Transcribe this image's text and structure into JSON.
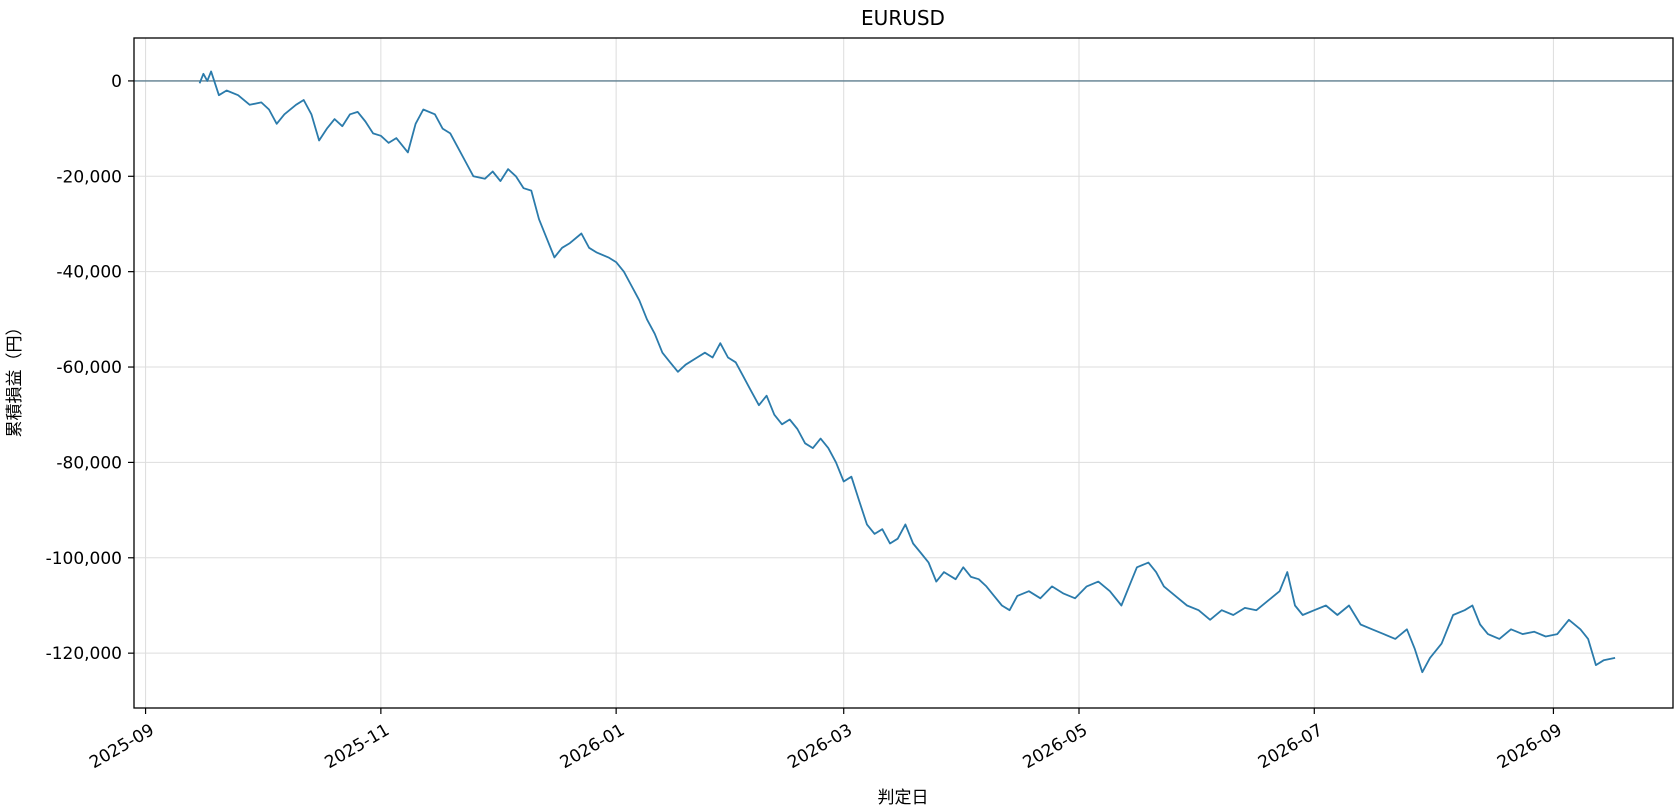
{
  "chart_data": {
    "type": "line",
    "title": "EURUSD",
    "xlabel": "判定日",
    "ylabel": "累積損益（円）",
    "x_ticks": [
      "2025-09",
      "2025-11",
      "2026-01",
      "2026-03",
      "2026-05",
      "2026-07",
      "2026-09"
    ],
    "y_ticks": [
      "0",
      "-20,000",
      "-40,000",
      "-60,000",
      "-80,000",
      "-100,000",
      "-120,000"
    ],
    "y_tick_values": [
      0,
      -20000,
      -40000,
      -60000,
      -80000,
      -100000,
      -120000
    ],
    "xlim": [
      "2025-08-29",
      "2026-10-02"
    ],
    "ylim": [
      -131500,
      9000
    ],
    "grid": true,
    "reference_line_y": 0,
    "colors": {
      "line": "#2b7bab",
      "zero_line": "#5f7f8f",
      "grid": "#dddddd",
      "axes": "#000000"
    },
    "series": [
      {
        "points": [
          [
            "2025-09-15",
            -500
          ],
          [
            "2025-09-16",
            1500
          ],
          [
            "2025-09-17",
            0
          ],
          [
            "2025-09-18",
            2000
          ],
          [
            "2025-09-19",
            -500
          ],
          [
            "2025-09-20",
            -3000
          ],
          [
            "2025-09-22",
            -2000
          ],
          [
            "2025-09-25",
            -3000
          ],
          [
            "2025-09-28",
            -5000
          ],
          [
            "2025-10-01",
            -4500
          ],
          [
            "2025-10-03",
            -6000
          ],
          [
            "2025-10-05",
            -9000
          ],
          [
            "2025-10-07",
            -7000
          ],
          [
            "2025-10-10",
            -5000
          ],
          [
            "2025-10-12",
            -4000
          ],
          [
            "2025-10-14",
            -7000
          ],
          [
            "2025-10-16",
            -12500
          ],
          [
            "2025-10-18",
            -10000
          ],
          [
            "2025-10-20",
            -8000
          ],
          [
            "2025-10-22",
            -9500
          ],
          [
            "2025-10-24",
            -7000
          ],
          [
            "2025-10-26",
            -6500
          ],
          [
            "2025-10-28",
            -8500
          ],
          [
            "2025-10-30",
            -11000
          ],
          [
            "2025-11-01",
            -11500
          ],
          [
            "2025-11-03",
            -13000
          ],
          [
            "2025-11-05",
            -12000
          ],
          [
            "2025-11-08",
            -15000
          ],
          [
            "2025-11-10",
            -9000
          ],
          [
            "2025-11-12",
            -6000
          ],
          [
            "2025-11-15",
            -7000
          ],
          [
            "2025-11-17",
            -10000
          ],
          [
            "2025-11-19",
            -11000
          ],
          [
            "2025-11-21",
            -14000
          ],
          [
            "2025-11-23",
            -17000
          ],
          [
            "2025-11-25",
            -20000
          ],
          [
            "2025-11-28",
            -20500
          ],
          [
            "2025-11-30",
            -19000
          ],
          [
            "2025-12-02",
            -21000
          ],
          [
            "2025-12-04",
            -18500
          ],
          [
            "2025-12-06",
            -20000
          ],
          [
            "2025-12-08",
            -22500
          ],
          [
            "2025-12-10",
            -23000
          ],
          [
            "2025-12-12",
            -29000
          ],
          [
            "2025-12-14",
            -33000
          ],
          [
            "2025-12-16",
            -37000
          ],
          [
            "2025-12-18",
            -35000
          ],
          [
            "2025-12-20",
            -34000
          ],
          [
            "2025-12-23",
            -32000
          ],
          [
            "2025-12-25",
            -35000
          ],
          [
            "2025-12-27",
            -36000
          ],
          [
            "2025-12-30",
            -37000
          ],
          [
            "2026-01-01",
            -38000
          ],
          [
            "2026-01-03",
            -40000
          ],
          [
            "2026-01-05",
            -43000
          ],
          [
            "2026-01-07",
            -46000
          ],
          [
            "2026-01-09",
            -50000
          ],
          [
            "2026-01-11",
            -53000
          ],
          [
            "2026-01-13",
            -57000
          ],
          [
            "2026-01-15",
            -59000
          ],
          [
            "2026-01-17",
            -61000
          ],
          [
            "2026-01-19",
            -59500
          ],
          [
            "2026-01-22",
            -58000
          ],
          [
            "2026-01-24",
            -57000
          ],
          [
            "2026-01-26",
            -58000
          ],
          [
            "2026-01-28",
            -55000
          ],
          [
            "2026-01-30",
            -58000
          ],
          [
            "2026-02-01",
            -59000
          ],
          [
            "2026-02-03",
            -62000
          ],
          [
            "2026-02-05",
            -65000
          ],
          [
            "2026-02-07",
            -68000
          ],
          [
            "2026-02-09",
            -66000
          ],
          [
            "2026-02-11",
            -70000
          ],
          [
            "2026-02-13",
            -72000
          ],
          [
            "2026-02-15",
            -71000
          ],
          [
            "2026-02-17",
            -73000
          ],
          [
            "2026-02-19",
            -76000
          ],
          [
            "2026-02-21",
            -77000
          ],
          [
            "2026-02-23",
            -75000
          ],
          [
            "2026-02-25",
            -77000
          ],
          [
            "2026-02-27",
            -80000
          ],
          [
            "2026-03-01",
            -84000
          ],
          [
            "2026-03-03",
            -83000
          ],
          [
            "2026-03-05",
            -88000
          ],
          [
            "2026-03-07",
            -93000
          ],
          [
            "2026-03-09",
            -95000
          ],
          [
            "2026-03-11",
            -94000
          ],
          [
            "2026-03-13",
            -97000
          ],
          [
            "2026-03-15",
            -96000
          ],
          [
            "2026-03-17",
            -93000
          ],
          [
            "2026-03-19",
            -97000
          ],
          [
            "2026-03-21",
            -99000
          ],
          [
            "2026-03-23",
            -101000
          ],
          [
            "2026-03-25",
            -105000
          ],
          [
            "2026-03-27",
            -103000
          ],
          [
            "2026-03-30",
            -104500
          ],
          [
            "2026-04-01",
            -102000
          ],
          [
            "2026-04-03",
            -104000
          ],
          [
            "2026-04-05",
            -104500
          ],
          [
            "2026-04-07",
            -106000
          ],
          [
            "2026-04-09",
            -108000
          ],
          [
            "2026-04-11",
            -110000
          ],
          [
            "2026-04-13",
            -111000
          ],
          [
            "2026-04-15",
            -108000
          ],
          [
            "2026-04-18",
            -107000
          ],
          [
            "2026-04-21",
            -108500
          ],
          [
            "2026-04-24",
            -106000
          ],
          [
            "2026-04-27",
            -107500
          ],
          [
            "2026-04-30",
            -108500
          ],
          [
            "2026-05-03",
            -106000
          ],
          [
            "2026-05-06",
            -105000
          ],
          [
            "2026-05-09",
            -107000
          ],
          [
            "2026-05-12",
            -110000
          ],
          [
            "2026-05-14",
            -106000
          ],
          [
            "2026-05-16",
            -102000
          ],
          [
            "2026-05-19",
            -101000
          ],
          [
            "2026-05-21",
            -103000
          ],
          [
            "2026-05-23",
            -106000
          ],
          [
            "2026-05-26",
            -108000
          ],
          [
            "2026-05-29",
            -110000
          ],
          [
            "2026-06-01",
            -111000
          ],
          [
            "2026-06-04",
            -113000
          ],
          [
            "2026-06-07",
            -111000
          ],
          [
            "2026-06-10",
            -112000
          ],
          [
            "2026-06-13",
            -110500
          ],
          [
            "2026-06-16",
            -111000
          ],
          [
            "2026-06-19",
            -109000
          ],
          [
            "2026-06-22",
            -107000
          ],
          [
            "2026-06-24",
            -103000
          ],
          [
            "2026-06-26",
            -110000
          ],
          [
            "2026-06-28",
            -112000
          ],
          [
            "2026-07-01",
            -111000
          ],
          [
            "2026-07-04",
            -110000
          ],
          [
            "2026-07-07",
            -112000
          ],
          [
            "2026-07-10",
            -110000
          ],
          [
            "2026-07-13",
            -114000
          ],
          [
            "2026-07-16",
            -115000
          ],
          [
            "2026-07-19",
            -116000
          ],
          [
            "2026-07-22",
            -117000
          ],
          [
            "2026-07-25",
            -115000
          ],
          [
            "2026-07-27",
            -119000
          ],
          [
            "2026-07-29",
            -124000
          ],
          [
            "2026-07-31",
            -121000
          ],
          [
            "2026-08-03",
            -118000
          ],
          [
            "2026-08-06",
            -112000
          ],
          [
            "2026-08-09",
            -111000
          ],
          [
            "2026-08-11",
            -110000
          ],
          [
            "2026-08-13",
            -114000
          ],
          [
            "2026-08-15",
            -116000
          ],
          [
            "2026-08-18",
            -117000
          ],
          [
            "2026-08-21",
            -115000
          ],
          [
            "2026-08-24",
            -116000
          ],
          [
            "2026-08-27",
            -115500
          ],
          [
            "2026-08-30",
            -116500
          ],
          [
            "2026-09-02",
            -116000
          ],
          [
            "2026-09-05",
            -113000
          ],
          [
            "2026-09-08",
            -115000
          ],
          [
            "2026-09-10",
            -117000
          ],
          [
            "2026-09-12",
            -122500
          ],
          [
            "2026-09-14",
            -121500
          ],
          [
            "2026-09-17",
            -121000
          ]
        ]
      }
    ]
  }
}
